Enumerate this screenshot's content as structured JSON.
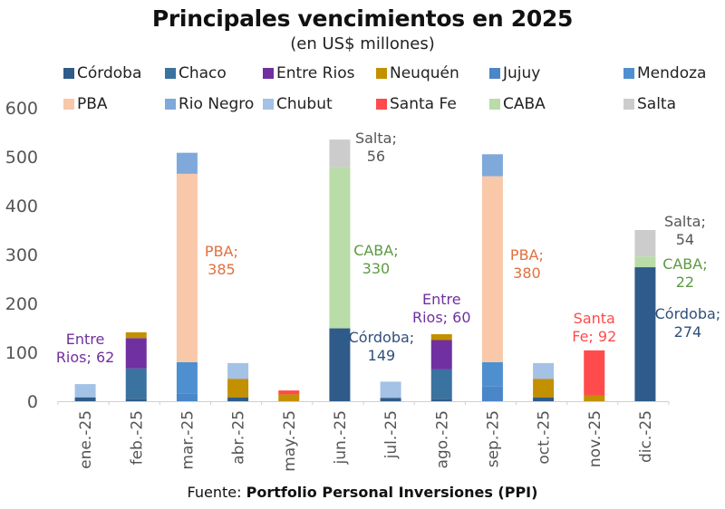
{
  "chart_data": {
    "type": "bar",
    "stacked": true,
    "title": "Principales vencimientos en 2025",
    "subtitle": "(en US$ millones)",
    "xlabel": "",
    "ylabel": "",
    "ylim": [
      0,
      600
    ],
    "yticks": [
      0,
      100,
      200,
      300,
      400,
      500,
      600
    ],
    "grid": false,
    "legend_position": "top",
    "categories": [
      "ene.-25",
      "feb.-25",
      "mar.-25",
      "abr.-25",
      "may.-25",
      "jun.-25",
      "jul.-25",
      "ago.-25",
      "sep.-25",
      "oct.-25",
      "nov.-25",
      "dic.-25"
    ],
    "series": [
      {
        "name": "Córdoba",
        "color": "#2f5b8a",
        "values": [
          8,
          5,
          0,
          8,
          0,
          149,
          7,
          5,
          0,
          8,
          0,
          274
        ]
      },
      {
        "name": "Chaco",
        "color": "#3a72a0",
        "values": [
          0,
          62,
          0,
          0,
          0,
          0,
          0,
          60,
          0,
          0,
          0,
          0
        ]
      },
      {
        "name": "Entre Rios",
        "color": "#7030a0",
        "values": [
          0,
          62,
          0,
          0,
          0,
          0,
          0,
          60,
          0,
          0,
          0,
          0
        ]
      },
      {
        "name": "Neuquén",
        "color": "#c39000",
        "values": [
          0,
          12,
          0,
          38,
          14,
          0,
          0,
          12,
          0,
          38,
          12,
          0
        ]
      },
      {
        "name": "Jujuy",
        "color": "#4a86c8",
        "values": [
          0,
          0,
          15,
          0,
          0,
          0,
          0,
          0,
          30,
          0,
          0,
          0
        ]
      },
      {
        "name": "Mendoza",
        "color": "#4e8fd0",
        "values": [
          0,
          0,
          65,
          0,
          0,
          0,
          0,
          0,
          50,
          0,
          0,
          0
        ]
      },
      {
        "name": "PBA",
        "color": "#f8c8a8",
        "values": [
          0,
          0,
          385,
          0,
          0,
          0,
          0,
          0,
          380,
          0,
          0,
          0
        ]
      },
      {
        "name": "Rio Negro",
        "color": "#7fa9da",
        "values": [
          0,
          0,
          43,
          0,
          0,
          0,
          0,
          0,
          45,
          0,
          0,
          0
        ]
      },
      {
        "name": "Chubut",
        "color": "#a3c2e6",
        "values": [
          27,
          0,
          0,
          32,
          0,
          0,
          33,
          0,
          0,
          32,
          0,
          0
        ]
      },
      {
        "name": "Santa Fe",
        "color": "#ff4b4b",
        "values": [
          0,
          0,
          0,
          0,
          8,
          0,
          0,
          0,
          0,
          0,
          92,
          0
        ]
      },
      {
        "name": "CABA",
        "color": "#b9dca8",
        "values": [
          0,
          0,
          0,
          0,
          0,
          330,
          0,
          0,
          0,
          0,
          0,
          22
        ]
      },
      {
        "name": "Salta",
        "color": "#cccccc",
        "values": [
          0,
          0,
          0,
          0,
          0,
          56,
          0,
          0,
          0,
          0,
          0,
          54
        ]
      }
    ],
    "annotations": [
      {
        "category": "ene.-25",
        "series": "Entre Rios",
        "lines": [
          "Entre",
          "Rios; 62"
        ],
        "color": "#7030a0"
      },
      {
        "category": "mar.-25",
        "series": "PBA",
        "lines": [
          "PBA;",
          "385"
        ],
        "color": "#e07040"
      },
      {
        "category": "jun.-25",
        "series": "Salta",
        "lines": [
          "Salta;",
          "56"
        ],
        "color": "#555555"
      },
      {
        "category": "jun.-25",
        "series": "CABA",
        "lines": [
          "CABA;",
          "330"
        ],
        "color": "#5c9a40"
      },
      {
        "category": "jun.-25",
        "series": "Córdoba",
        "lines": [
          "Córdoba;",
          "149"
        ],
        "color": "#2f4f7a"
      },
      {
        "category": "ago.-25",
        "series": "Entre Rios",
        "lines": [
          "Entre",
          "Rios; 60"
        ],
        "color": "#7030a0"
      },
      {
        "category": "sep.-25",
        "series": "PBA",
        "lines": [
          "PBA;",
          "380"
        ],
        "color": "#e07040"
      },
      {
        "category": "nov.-25",
        "series": "Santa Fe",
        "lines": [
          "Santa",
          "Fe; 92"
        ],
        "color": "#ff4b4b"
      },
      {
        "category": "dic.-25",
        "series": "Salta",
        "lines": [
          "Salta;",
          "54"
        ],
        "color": "#555555"
      },
      {
        "category": "dic.-25",
        "series": "CABA",
        "lines": [
          "CABA;",
          "22"
        ],
        "color": "#5c9a40"
      },
      {
        "category": "dic.-25",
        "series": "Córdoba",
        "lines": [
          "Córdoba;",
          "274"
        ],
        "color": "#2f4f7a"
      }
    ],
    "source_prefix": "Fuente: ",
    "source": "Portfolio Personal Inversiones (PPI)"
  }
}
